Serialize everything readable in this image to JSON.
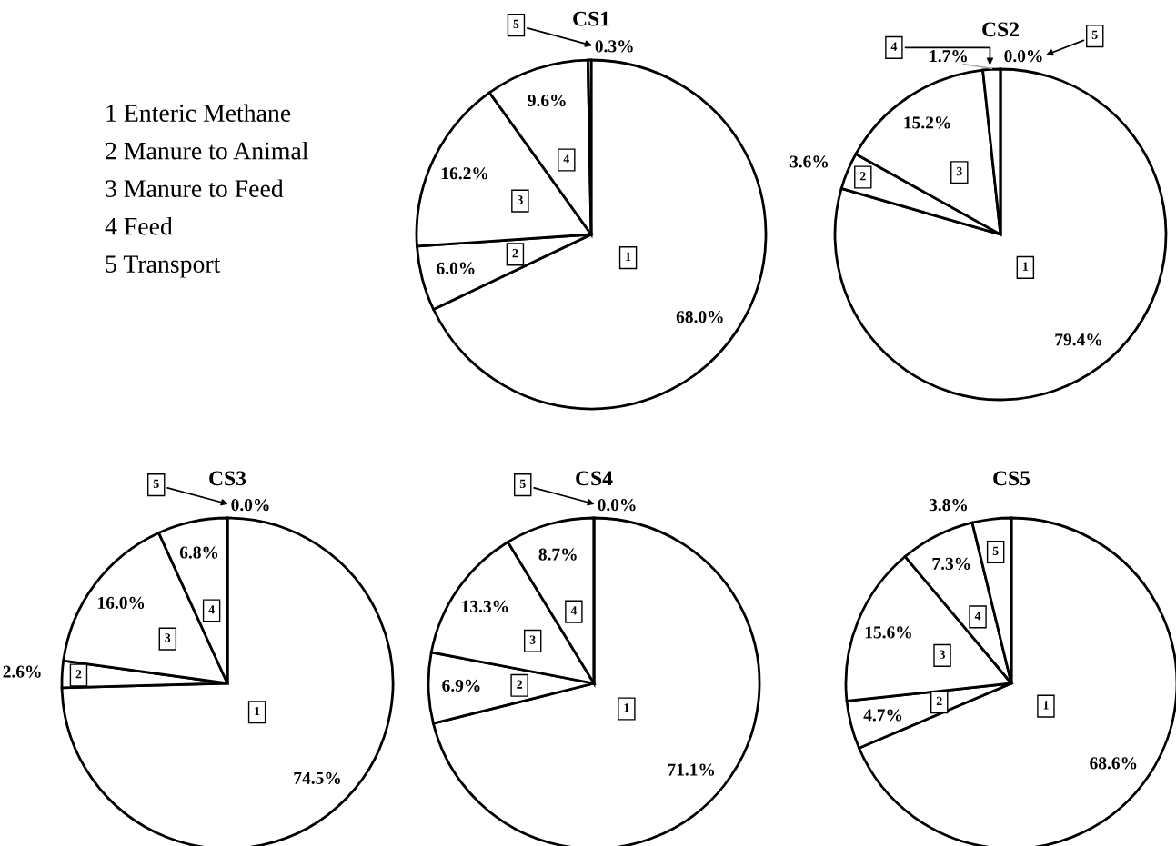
{
  "chart_data": [
    {
      "type": "pie",
      "title": "CS1",
      "categories": [
        "1",
        "2",
        "3",
        "4",
        "5"
      ],
      "values": [
        68.0,
        6.0,
        16.2,
        9.6,
        0.3
      ],
      "value_labels": [
        "68.0%",
        "6.0%",
        "16.2%",
        "9.6%",
        "0.3%"
      ],
      "colors": [
        "#ffffff",
        "#ffffff",
        "#ffffff",
        "#ffffff",
        "#ffffff"
      ],
      "annotations": [
        "1 Enteric Methane",
        "2 Manure to Animal",
        "3 Manure to Feed",
        "4 Feed",
        "5 Transport"
      ]
    },
    {
      "type": "pie",
      "title": "CS2",
      "categories": [
        "1",
        "2",
        "3",
        "4",
        "5"
      ],
      "values": [
        79.4,
        3.6,
        15.2,
        1.7,
        0.0
      ],
      "value_labels": [
        "79.4%",
        "3.6%",
        "15.2%",
        "1.7%",
        "0.0%"
      ],
      "colors": [
        "#ffffff",
        "#ffffff",
        "#ffffff",
        "#ffffff",
        "#ffffff"
      ]
    },
    {
      "type": "pie",
      "title": "CS3",
      "categories": [
        "1",
        "2",
        "3",
        "4",
        "5"
      ],
      "values": [
        74.5,
        2.6,
        16.0,
        6.8,
        0.0
      ],
      "value_labels": [
        "74.5%",
        "2.6%",
        "16.0%",
        "6.8%",
        "0.0%"
      ],
      "colors": [
        "#ffffff",
        "#ffffff",
        "#ffffff",
        "#ffffff",
        "#ffffff"
      ]
    },
    {
      "type": "pie",
      "title": "CS4",
      "categories": [
        "1",
        "2",
        "3",
        "4",
        "5"
      ],
      "values": [
        71.1,
        6.9,
        13.3,
        8.7,
        0.0
      ],
      "value_labels": [
        "71.1%",
        "6.9%",
        "13.3%",
        "8.7%",
        "0.0%"
      ],
      "colors": [
        "#ffffff",
        "#ffffff",
        "#ffffff",
        "#ffffff",
        "#ffffff"
      ]
    },
    {
      "type": "pie",
      "title": "CS5",
      "categories": [
        "1",
        "2",
        "3",
        "4",
        "5"
      ],
      "values": [
        68.6,
        4.7,
        15.6,
        7.3,
        3.8
      ],
      "value_labels": [
        "68.6%",
        "4.7%",
        "15.6%",
        "7.3%",
        "3.8%"
      ],
      "colors": [
        "#ffffff",
        "#ffffff",
        "#ffffff",
        "#ffffff",
        "#ffffff"
      ]
    }
  ]
}
